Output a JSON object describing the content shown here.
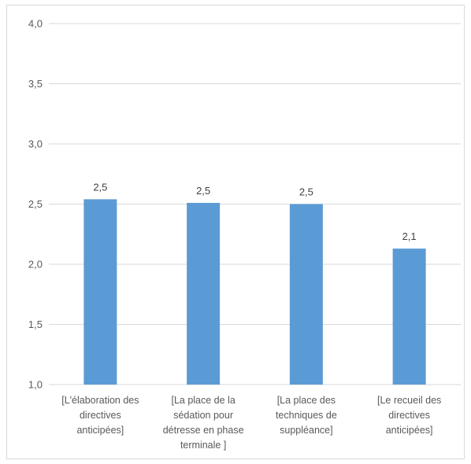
{
  "chart_data": {
    "type": "bar",
    "categories": [
      "[L'élaboration des directives anticipées]",
      "[La place de la sédation pour détresse en phase terminale ]",
      "[La place des techniques de suppléance]",
      "[Le recueil des directives anticipées]"
    ],
    "category_lines": [
      [
        "[L'élaboration des",
        "directives",
        "anticipées]"
      ],
      [
        "[La place de la",
        "sédation pour",
        "détresse en phase",
        "terminale ]"
      ],
      [
        "[La place des",
        "techniques de",
        "suppléance]"
      ],
      [
        "[Le recueil des",
        "directives",
        "anticipées]"
      ]
    ],
    "values": [
      2.54,
      2.51,
      2.5,
      2.13
    ],
    "data_labels": [
      "2,5",
      "2,5",
      "2,5",
      "2,1"
    ],
    "y_ticks": [
      1.0,
      1.5,
      2.0,
      2.5,
      3.0,
      3.5,
      4.0
    ],
    "y_tick_labels": [
      "1,0",
      "1,5",
      "2,0",
      "2,5",
      "3,0",
      "3,5",
      "4,0"
    ],
    "ylim": [
      1.0,
      4.0
    ],
    "grid": true,
    "legend": "none",
    "bar_color": "#5b9bd5",
    "title": "",
    "xlabel": "",
    "ylabel": ""
  }
}
